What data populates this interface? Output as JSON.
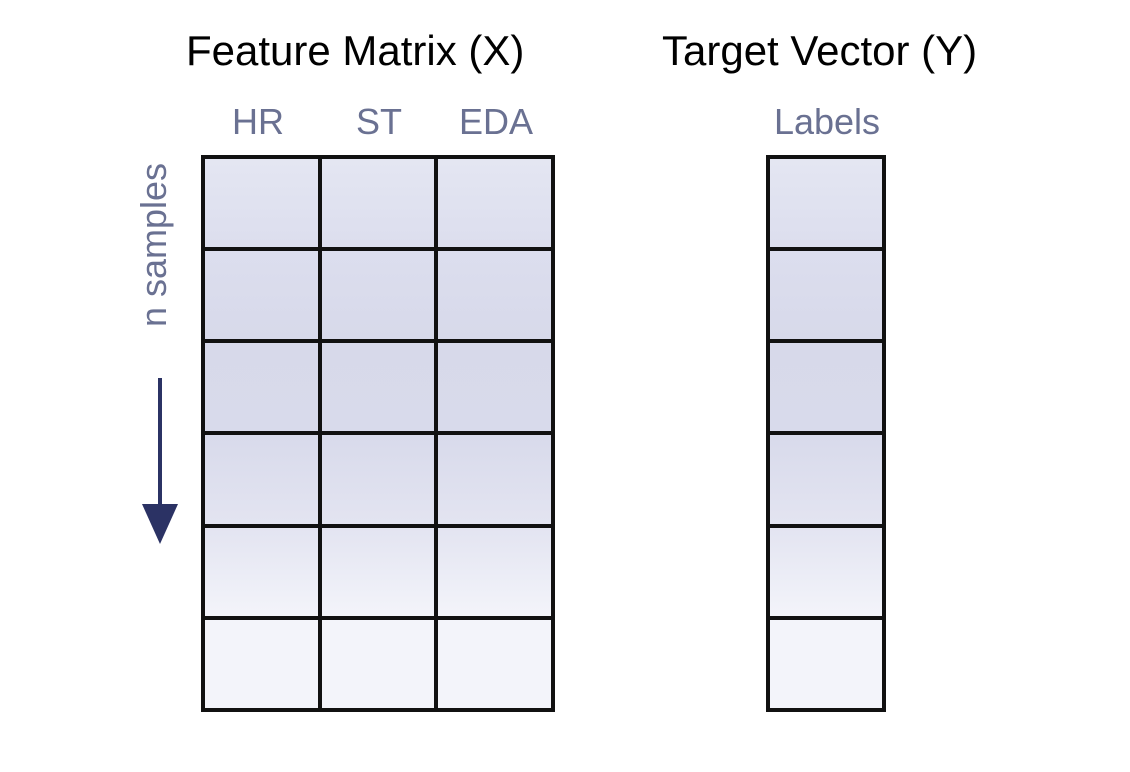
{
  "feature_matrix": {
    "title": "Feature Matrix (X)",
    "columns": [
      "HR",
      "ST",
      "EDA"
    ],
    "rows": 6
  },
  "target_vector": {
    "title": "Target Vector (Y)",
    "column": "Labels",
    "rows": 6
  },
  "rows_axis": {
    "label": "n samples",
    "direction": "down"
  },
  "colors": {
    "label_text": "#6a7192",
    "arrow": "#2b3264",
    "grid_line": "#111111",
    "cell_fills_top_to_bottom": [
      "#e4e6f2",
      "#dcdeee",
      "#d7d9ea",
      "#d8daeb",
      "#e3e4f1",
      "#f3f4fa"
    ]
  }
}
